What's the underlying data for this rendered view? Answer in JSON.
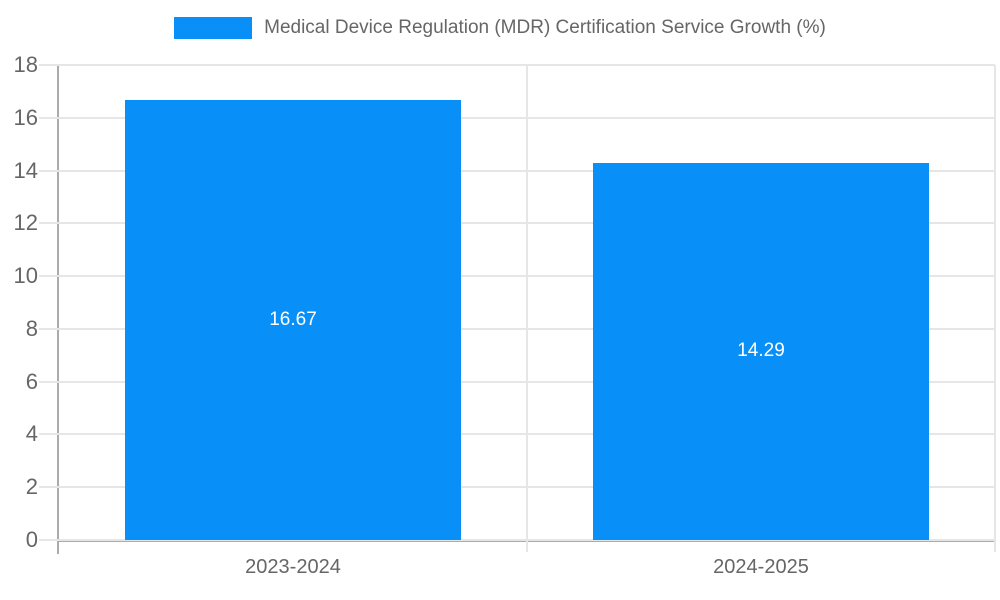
{
  "chart_data": {
    "type": "bar",
    "title": "Medical Device Regulation (MDR) Certification Service Growth (%)",
    "legend": {
      "position": "top",
      "label": "Medical Device Regulation (MDR) Certification Service Growth (%)"
    },
    "categories": [
      "2023-2024",
      "2024-2025"
    ],
    "values": [
      16.67,
      14.29
    ],
    "value_labels": [
      "16.67",
      "14.29"
    ],
    "xlabel": "",
    "ylabel": "",
    "ylim": [
      0,
      18
    ],
    "yticks": [
      0,
      2,
      4,
      6,
      8,
      10,
      12,
      14,
      16,
      18
    ],
    "grid": true,
    "colors": {
      "bar": "#0990f8",
      "value_label": "#ffffff",
      "tick_label": "#666666",
      "legend_text": "#666666",
      "gridline": "#e6e6e6",
      "axis_line": "#ababab",
      "background": "#ffffff"
    }
  }
}
